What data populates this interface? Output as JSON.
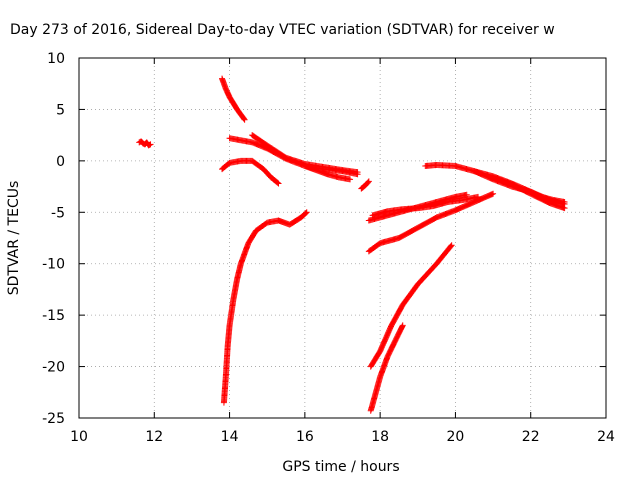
{
  "chart_data": {
    "type": "scatter",
    "title": "Day 273 of 2016, Sidereal Day-to-day VTEC variation (SDTVAR) for receiver w",
    "xlabel": "GPS time / hours",
    "ylabel": "SDTVAR / TECUs",
    "xlim": [
      10,
      24
    ],
    "ylim": [
      -25,
      10
    ],
    "xticks": [
      10,
      12,
      14,
      16,
      18,
      20,
      22,
      24
    ],
    "yticks": [
      10,
      5,
      0,
      -5,
      -10,
      -15,
      -20,
      -25
    ],
    "grid": true,
    "marker": "+",
    "color": "#ff0000",
    "series": [
      {
        "x": [
          11.6,
          11.65,
          11.7,
          11.75,
          11.8,
          11.85,
          11.9
        ],
        "y": [
          1.8,
          1.9,
          1.7,
          1.6,
          1.8,
          1.5,
          1.6
        ]
      },
      {
        "x": [
          13.8,
          13.9,
          14.0,
          14.1,
          14.2,
          14.3,
          14.4
        ],
        "y": [
          8.0,
          7.0,
          6.2,
          5.6,
          5.0,
          4.5,
          4.0
        ]
      },
      {
        "x": [
          14.0,
          14.3,
          14.6,
          15.0,
          15.5,
          16.0,
          16.5,
          17.0,
          17.4
        ],
        "y": [
          2.2,
          2.0,
          1.8,
          1.2,
          0.2,
          -0.5,
          -0.8,
          -1.0,
          -1.3
        ]
      },
      {
        "x": [
          14.6,
          15.0,
          15.5,
          16.0,
          16.5,
          17.0,
          17.4
        ],
        "y": [
          2.5,
          1.5,
          0.3,
          -0.3,
          -0.6,
          -0.9,
          -1.1
        ]
      },
      {
        "x": [
          13.8,
          14.0,
          14.3,
          14.6,
          14.9,
          15.1,
          15.3
        ],
        "y": [
          -0.8,
          -0.2,
          0.0,
          0.0,
          -0.8,
          -1.6,
          -2.2
        ]
      },
      {
        "x": [
          16.0,
          16.3,
          16.6,
          16.9,
          17.2
        ],
        "y": [
          -0.5,
          -0.9,
          -1.3,
          -1.6,
          -1.8
        ]
      },
      {
        "x": [
          17.5,
          17.6,
          17.7
        ],
        "y": [
          -2.7,
          -2.4,
          -2.0
        ]
      },
      {
        "x": [
          13.85,
          13.9,
          13.95,
          14.0,
          14.1,
          14.2,
          14.3,
          14.5,
          14.7,
          15.0,
          15.3,
          15.6,
          15.9,
          16.05
        ],
        "y": [
          -23.5,
          -21.0,
          -18.0,
          -16.0,
          -13.5,
          -11.5,
          -10.0,
          -8.0,
          -6.8,
          -6.0,
          -5.8,
          -6.2,
          -5.5,
          -5.0
        ]
      },
      {
        "x": [
          17.75,
          18.0,
          18.3,
          18.6,
          19.0,
          19.5,
          19.9
        ],
        "y": [
          -20.0,
          -18.5,
          -16.0,
          -14.0,
          -12.0,
          -10.0,
          -8.2
        ]
      },
      {
        "x": [
          17.75,
          17.85,
          18.0,
          18.2,
          18.4,
          18.6
        ],
        "y": [
          -24.3,
          -23.0,
          -21.0,
          -19.0,
          -17.5,
          -16.0
        ]
      },
      {
        "x": [
          17.7,
          18.0,
          18.5,
          19.0,
          19.5,
          20.0,
          20.5,
          21.0
        ],
        "y": [
          -8.8,
          -8.0,
          -7.5,
          -6.5,
          -5.5,
          -4.8,
          -4.0,
          -3.2
        ]
      },
      {
        "x": [
          17.7,
          18.0,
          18.5,
          19.0,
          19.5,
          20.0,
          20.3
        ],
        "y": [
          -5.8,
          -5.5,
          -5.0,
          -4.5,
          -4.0,
          -3.5,
          -3.3
        ]
      },
      {
        "x": [
          17.8,
          18.2,
          18.6,
          19.0,
          19.4,
          19.8,
          20.2,
          20.6
        ],
        "y": [
          -5.3,
          -4.9,
          -4.7,
          -4.6,
          -4.4,
          -4.0,
          -3.8,
          -3.5
        ]
      },
      {
        "x": [
          19.2,
          19.5,
          20.0,
          20.5,
          21.0,
          21.5,
          22.0,
          22.5,
          22.9
        ],
        "y": [
          -0.5,
          -0.4,
          -0.5,
          -1.0,
          -1.5,
          -2.2,
          -3.0,
          -3.8,
          -4.2
        ]
      },
      {
        "x": [
          20.5,
          21.0,
          21.5,
          22.0,
          22.3,
          22.6,
          22.9
        ],
        "y": [
          -1.0,
          -1.8,
          -2.5,
          -3.0,
          -3.5,
          -3.8,
          -4.0
        ]
      },
      {
        "x": [
          21.0,
          21.5,
          22.0,
          22.5,
          22.9
        ],
        "y": [
          -1.6,
          -2.3,
          -3.2,
          -4.1,
          -4.6
        ]
      }
    ]
  }
}
